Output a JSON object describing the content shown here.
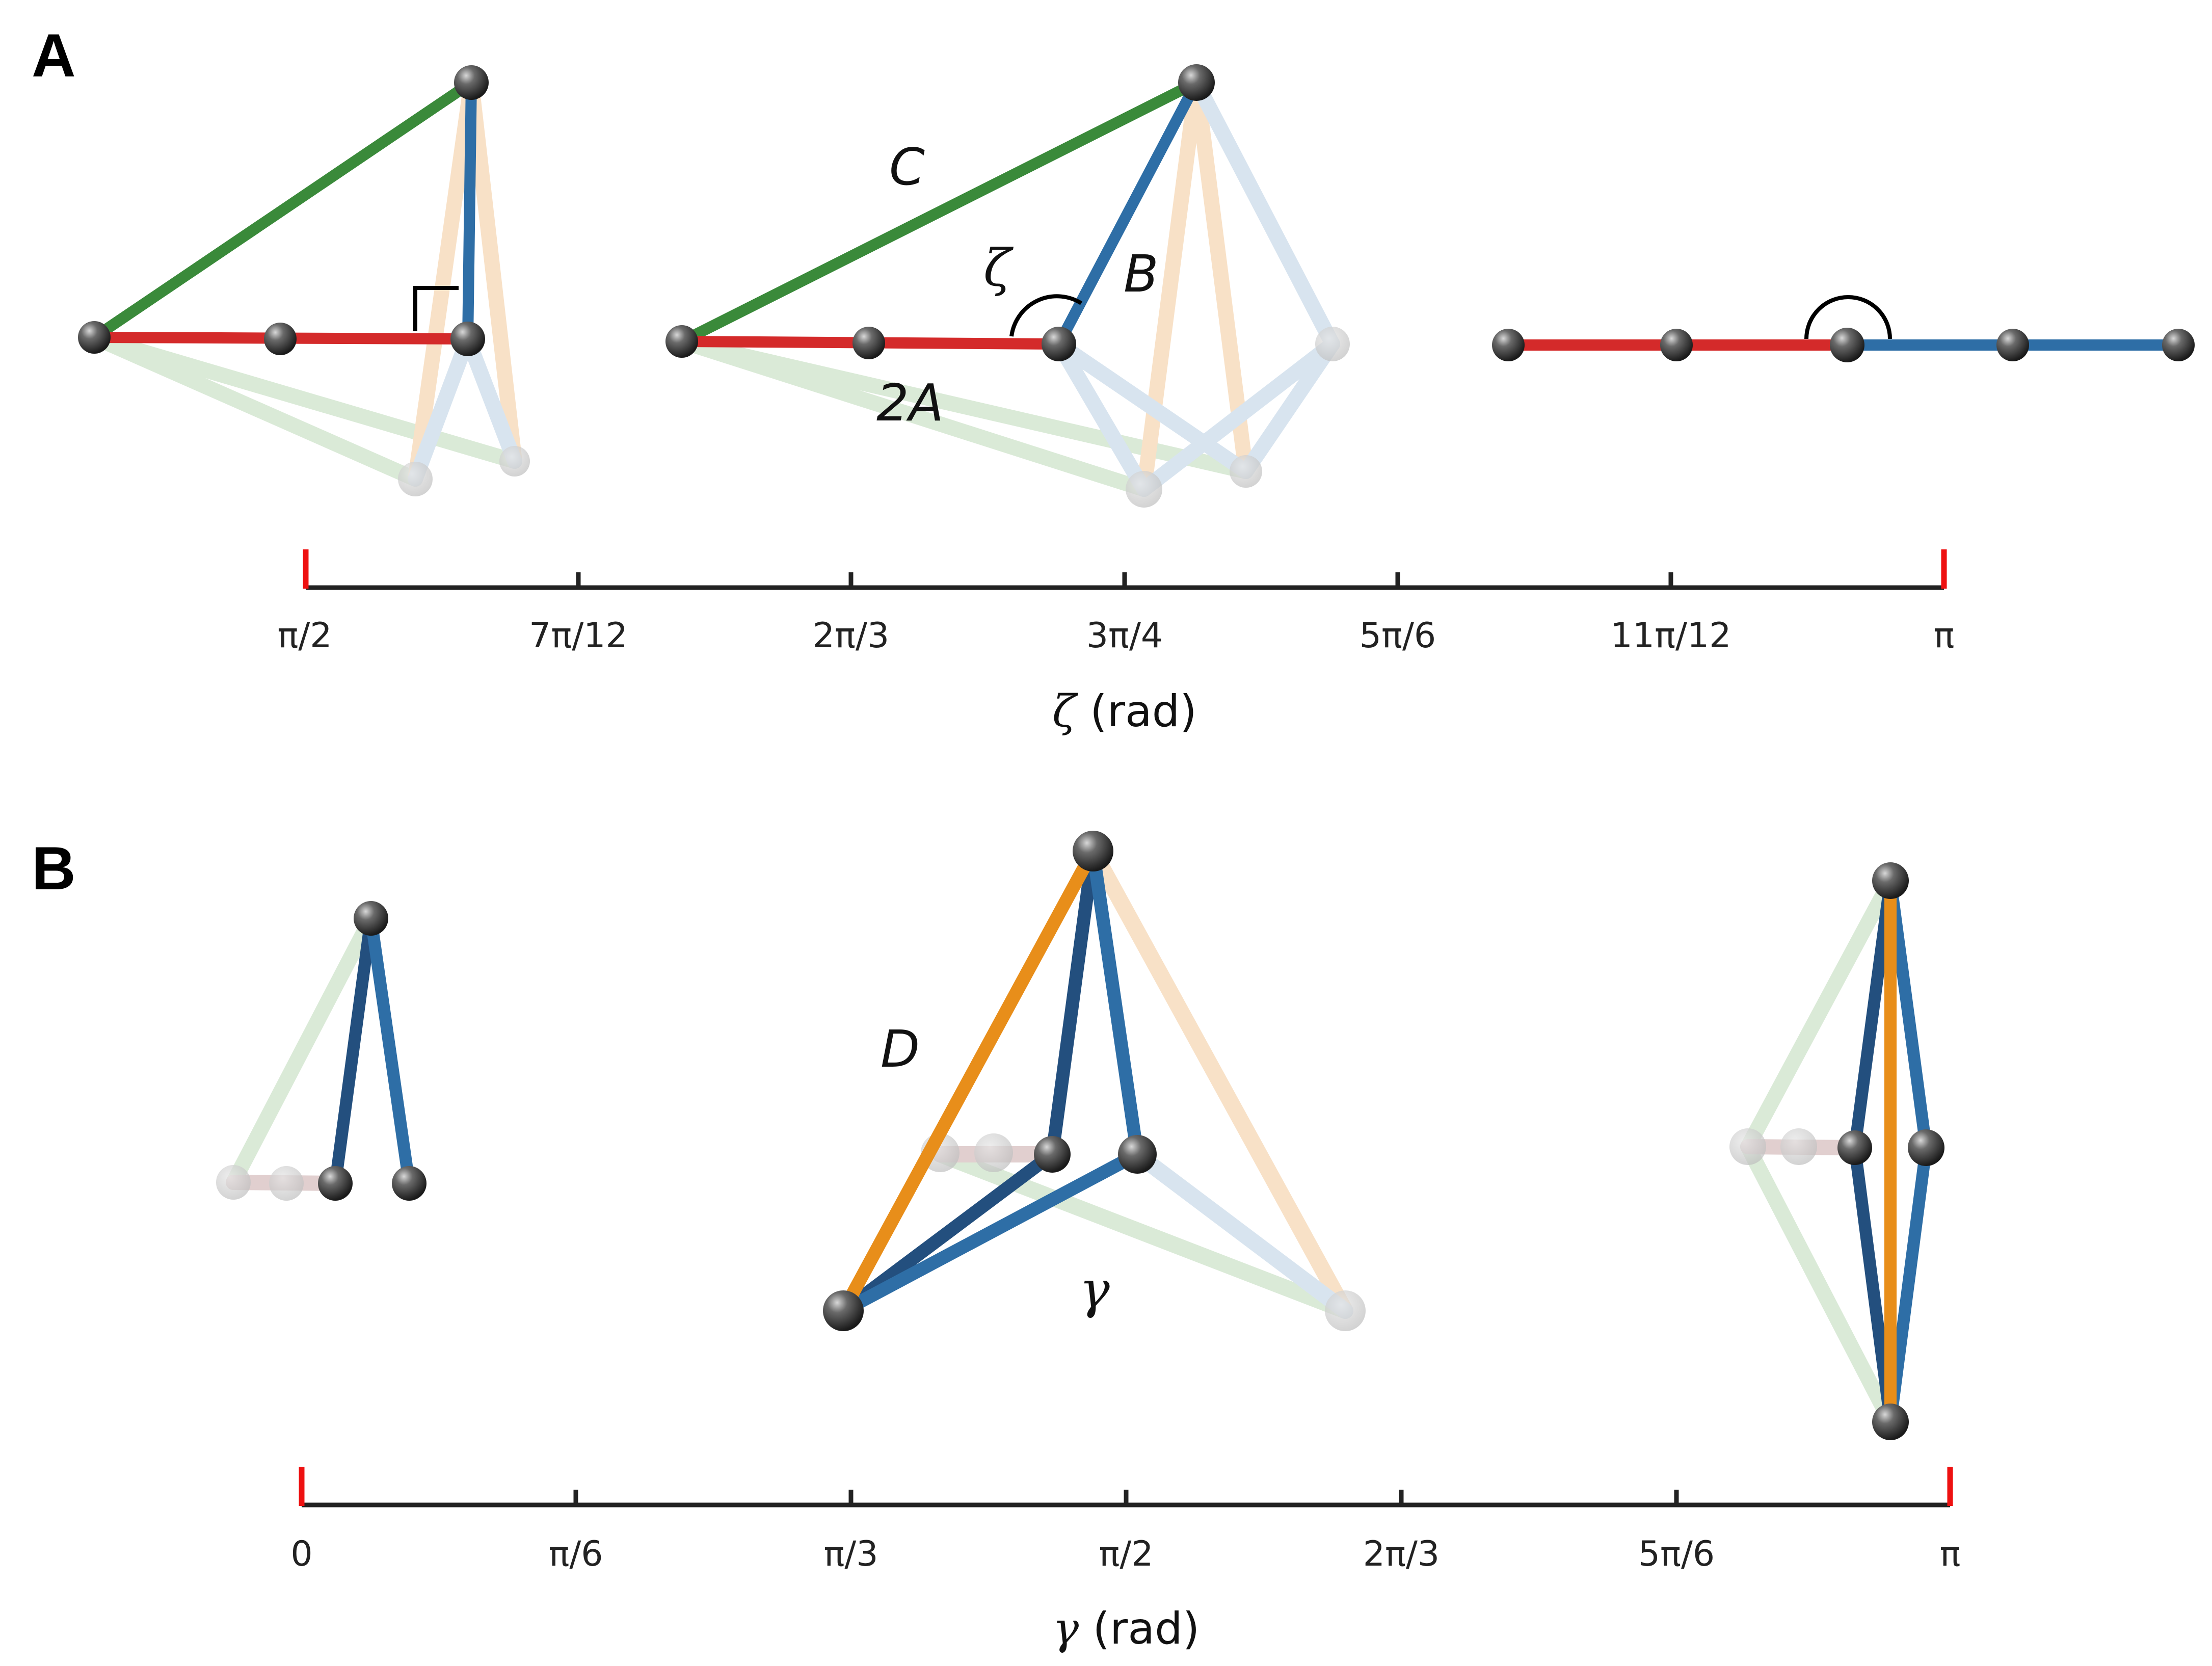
{
  "panels": {
    "a": {
      "letter": "A"
    },
    "b": {
      "letter": "B"
    }
  },
  "labels": {
    "C": "C",
    "B": "B",
    "twoA": "2A",
    "zeta": "ζ",
    "D": "D",
    "gamma": "γ"
  },
  "axis_a": {
    "title_symbol": "ζ",
    "title_unit": " (rad)",
    "ticks": [
      "π/2",
      "7π/12",
      "2π/3",
      "3π/4",
      "5π/6",
      "11π/12",
      "π"
    ]
  },
  "axis_b": {
    "title_symbol": "γ",
    "title_unit": " (rad)",
    "ticks": [
      "0",
      "π/6",
      "π/3",
      "π/2",
      "2π/3",
      "5π/6",
      "π"
    ]
  },
  "colors": {
    "red": "#d42a2a",
    "green": "#3a8a3a",
    "blue": "#2e6ea6",
    "dark_blue": "#234f7e",
    "orange": "#e88e1a",
    "light_orange": "#f3c99a",
    "light_blue": "#b9cfe3",
    "light_green": "#bcd9b8",
    "light_brown": "#c9a9a9",
    "axis": "#222222",
    "endpoint": "#ee1111"
  }
}
